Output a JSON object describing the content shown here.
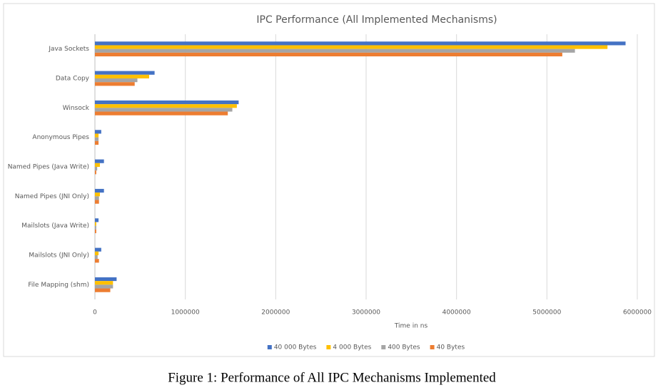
{
  "chart_data": {
    "type": "hbar",
    "title": "IPC Performance (All Implemented Mechanisms)",
    "x_label": "Time  in ns",
    "categories": [
      "Java Sockets",
      "Data Copy",
      "Winsock",
      "Anonymous Pipes",
      "Named Pipes (Java Write)",
      "Named Pipes (JNI Only)",
      "Mailslots (Java Write)",
      "Mailslots (JNI Only)",
      "File Mapping (shm)"
    ],
    "series": [
      {
        "name": "40 000 Bytes",
        "color": "#4472c4",
        "values": [
          5870000,
          660000,
          1590000,
          70000,
          100000,
          100000,
          40000,
          70000,
          240000
        ]
      },
      {
        "name": "4 000 Bytes",
        "color": "#ffc000",
        "values": [
          5670000,
          600000,
          1570000,
          40000,
          55000,
          55000,
          15000,
          40000,
          200000
        ]
      },
      {
        "name": "400 Bytes",
        "color": "#a5a5a5",
        "values": [
          5310000,
          470000,
          1520000,
          40000,
          25000,
          45000,
          15000,
          30000,
          200000
        ]
      },
      {
        "name": "40 Bytes",
        "color": "#ed7d31",
        "values": [
          5170000,
          440000,
          1470000,
          40000,
          15000,
          45000,
          15000,
          45000,
          170000
        ]
      }
    ],
    "xlim": [
      0,
      6000000
    ],
    "xticks": [
      0,
      1000000,
      2000000,
      3000000,
      4000000,
      5000000,
      6000000
    ],
    "grid": true,
    "legend": "bottom"
  },
  "caption": "Figure 1:  Performance of All IPC Mechanisms Implemented"
}
